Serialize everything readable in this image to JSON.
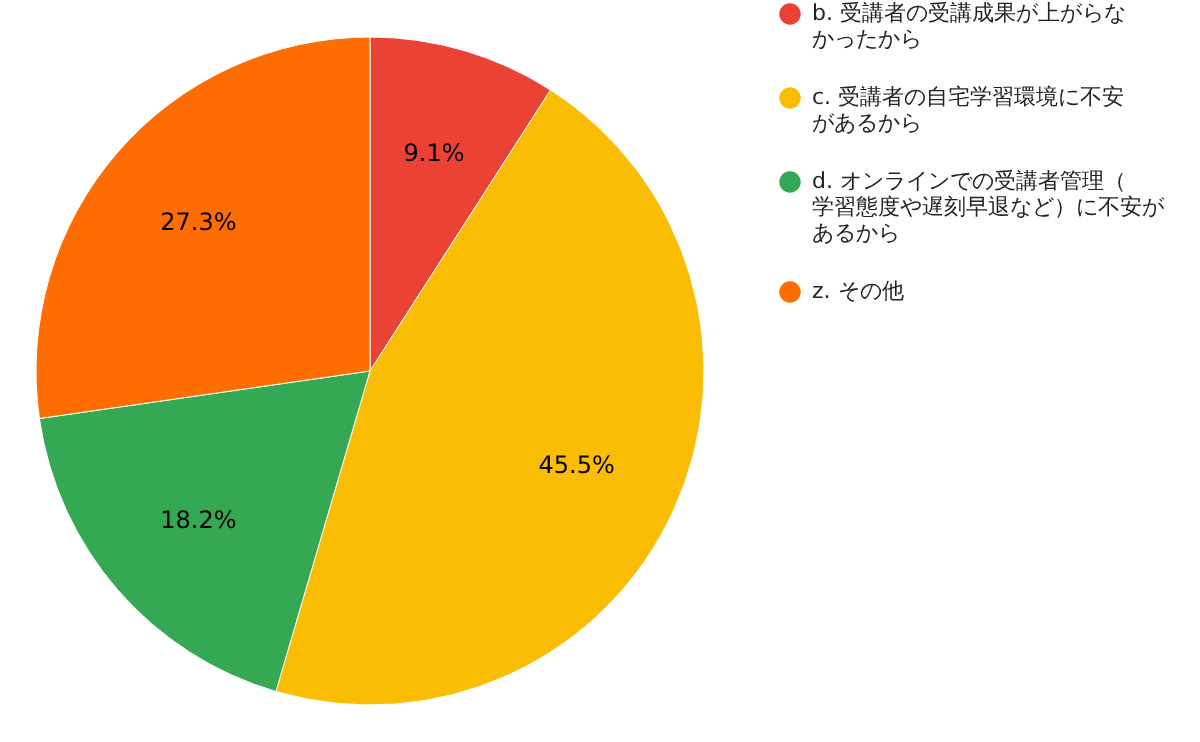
{
  "chart_data": {
    "type": "pie",
    "categories": [
      "b. 受講者の受講成果が上がらなかったから",
      "c. 受講者の自宅学習環境に不安があるから",
      "d. オンラインでの受講者管理（学習態度や遅刻早退など）に不安があるから",
      "z. その他"
    ],
    "values": [
      9.1,
      45.5,
      18.2,
      27.3
    ],
    "colors": [
      "#ea4335",
      "#fbbc04",
      "#34a853",
      "#ff6d01"
    ],
    "value_labels": [
      "9.1%",
      "45.5%",
      "18.2%",
      "27.3%"
    ],
    "legend": "top right"
  }
}
